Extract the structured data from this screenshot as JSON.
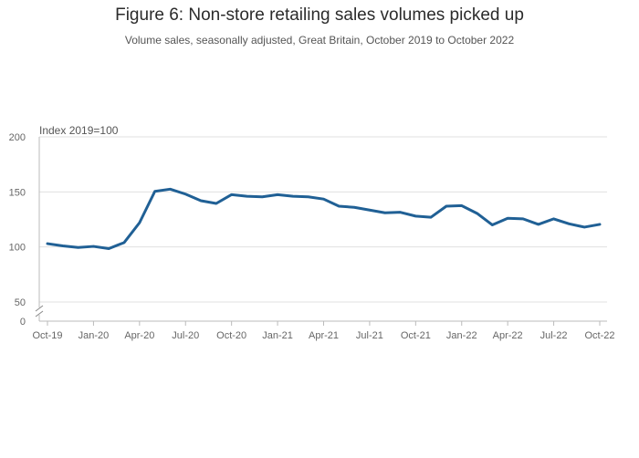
{
  "title": "Figure 6: Non-store retailing sales volumes picked up",
  "subtitle": "Volume sales, seasonally adjusted, Great Britain, October 2019 to October 2022",
  "colors": {
    "line": "#206095",
    "grid": "#e0e0e0",
    "axis": "#bbbbbb"
  },
  "chart_data": {
    "type": "line",
    "title": "Figure 6: Non-store retailing sales volumes picked up",
    "subtitle": "Volume sales, seasonally adjusted, Great Britain, October 2019 to October 2022",
    "unit_label": "Index 2019=100",
    "x_tick_labels": [
      "Oct-19",
      "Jan-20",
      "Apr-20",
      "Jul-20",
      "Oct-20",
      "Jan-21",
      "Apr-21",
      "Jul-21",
      "Oct-21",
      "Jan-22",
      "Apr-22",
      "Jul-22",
      "Oct-22"
    ],
    "y_tick_labels": [
      "200",
      "150",
      "100",
      "50",
      "0"
    ],
    "y_ticks": [
      0,
      50,
      100,
      150,
      200
    ],
    "ylim": [
      0,
      200
    ],
    "y_axis_broken": true,
    "grid": true,
    "x": [
      "Oct-19",
      "Nov-19",
      "Dec-19",
      "Jan-20",
      "Feb-20",
      "Mar-20",
      "Apr-20",
      "May-20",
      "Jun-20",
      "Jul-20",
      "Aug-20",
      "Sep-20",
      "Oct-20",
      "Nov-20",
      "Dec-20",
      "Jan-21",
      "Feb-21",
      "Mar-21",
      "Apr-21",
      "May-21",
      "Jun-21",
      "Jul-21",
      "Aug-21",
      "Sep-21",
      "Oct-21",
      "Nov-21",
      "Dec-21",
      "Jan-22",
      "Feb-22",
      "Mar-22",
      "Apr-22",
      "May-22",
      "Jun-22",
      "Jul-22",
      "Aug-22",
      "Sep-22",
      "Oct-22"
    ],
    "series": [
      {
        "values": [
          103,
          101,
          99.5,
          100.5,
          98.5,
          104,
          122,
          150.5,
          152.5,
          148,
          142,
          139.5,
          147.5,
          146,
          145.5,
          147.5,
          146,
          145.5,
          143.5,
          137,
          136,
          133.5,
          131,
          131.5,
          128,
          127,
          137,
          137.5,
          130.5,
          120,
          126,
          125.5,
          120.5,
          125.5,
          121,
          118,
          120.5
        ]
      }
    ]
  }
}
